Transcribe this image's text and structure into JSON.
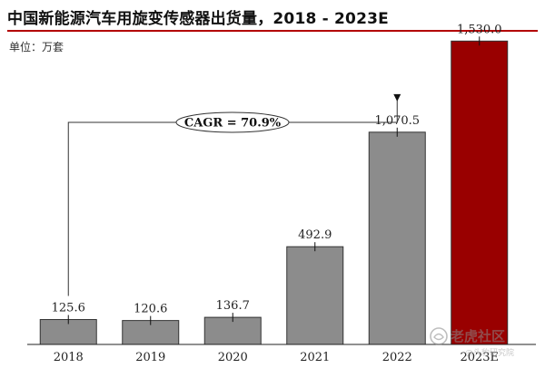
{
  "title": "中国新能源汽车用旋变传感器出货量，2018 - 2023E",
  "unit_label": "单位：万套",
  "colors": {
    "actual_bar": "#8c8c8c",
    "forecast_bar": "#990000",
    "title_rule": "#b30000"
  },
  "chart_data": {
    "type": "bar",
    "categories": [
      "2018",
      "2019",
      "2020",
      "2021",
      "2022",
      "2023E"
    ],
    "values": [
      125.6,
      120.6,
      136.7,
      492.9,
      1070.5,
      1530.0
    ],
    "value_labels": [
      "125.6",
      "120.6",
      "136.7",
      "492.9",
      "1,070.5",
      "1,530.0"
    ],
    "forecast_categories": [
      "2023E"
    ],
    "ylim": [
      0,
      1600
    ],
    "grid": false,
    "error_bars": true,
    "annotation": {
      "text": "CAGR = 70.9%",
      "from_category": "2018",
      "to_category": "2022"
    }
  },
  "watermark": {
    "brand": "老虎社区",
    "sub": "@头豹研究院"
  }
}
